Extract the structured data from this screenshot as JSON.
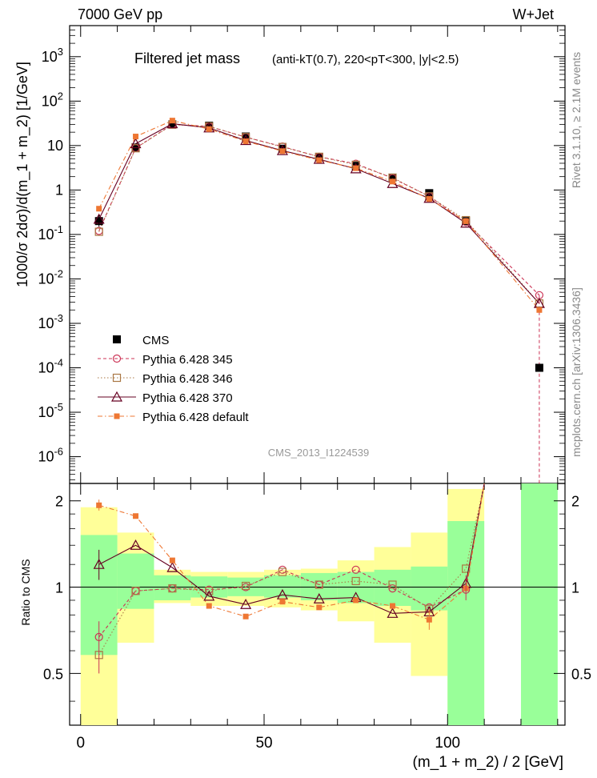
{
  "header": {
    "left": "7000 GeV pp",
    "right": "W+Jet"
  },
  "side_labels": {
    "rivet": "Rivet 3.1.10, ≥ 2.1M events",
    "mcplots": "mcplots.cern.ch [arXiv:1306.3436]"
  },
  "chart_data": [
    {
      "type": "line",
      "panel": "main",
      "title": "Filtered jet mass",
      "subtitle": "(anti-kT(0.7), 220<pT<300, |y|<2.5)",
      "analysis_tag": "CMS_2013_I1224539",
      "xlabel": "(m_1 + m_2) / 2 [GeV]",
      "ylabel": "1000/σ 2dσ)/d(m_1 + m_2) [1/GeV]",
      "yscale": "log",
      "xlim": [
        -3,
        132
      ],
      "ylim": [
        2.5e-07,
        5000
      ],
      "y_ticks": [
        {
          "value": 1e-06,
          "label": "10^-6"
        },
        {
          "value": 1e-05,
          "label": "10^-5"
        },
        {
          "value": 0.0001,
          "label": "10^-4"
        },
        {
          "value": 0.001,
          "label": "10^-3"
        },
        {
          "value": 0.01,
          "label": "10^-2"
        },
        {
          "value": 0.1,
          "label": "10^-1"
        },
        {
          "value": 1,
          "label": "1"
        },
        {
          "value": 10,
          "label": "10"
        },
        {
          "value": 100,
          "label": "10^2"
        },
        {
          "value": 1000,
          "label": "10^3"
        }
      ],
      "x": [
        5,
        15,
        25,
        35,
        45,
        55,
        65,
        75,
        85,
        95,
        105,
        125
      ],
      "x_bins": [
        [
          0,
          10
        ],
        [
          10,
          20
        ],
        [
          20,
          30
        ],
        [
          30,
          40
        ],
        [
          40,
          50
        ],
        [
          50,
          60
        ],
        [
          60,
          70
        ],
        [
          70,
          80
        ],
        [
          80,
          90
        ],
        [
          90,
          100
        ],
        [
          100,
          110
        ],
        [
          120,
          130
        ]
      ],
      "series": [
        {
          "name": "CMS",
          "label": "CMS",
          "color": "#000000",
          "marker": "square-filled",
          "values": [
            0.2,
            9.0,
            30.0,
            28.0,
            16.0,
            8.5,
            5.5,
            3.5,
            1.9,
            0.85,
            0.2,
            0.0001
          ]
        },
        {
          "name": "p345",
          "label": "Pythia 6.428 345",
          "color": "#cc3355",
          "marker": "circle-open",
          "values": [
            0.12,
            8.8,
            30.0,
            27.0,
            15.5,
            9.5,
            5.6,
            3.9,
            1.85,
            0.72,
            0.19,
            0.0043
          ]
        },
        {
          "name": "p346",
          "label": "Pythia 6.428 346",
          "color": "#aa7744",
          "marker": "square-open",
          "values": [
            0.115,
            8.7,
            29.5,
            27.0,
            15.5,
            9.3,
            5.6,
            3.7,
            1.9,
            0.72,
            0.21,
            0.0028
          ]
        },
        {
          "name": "p370",
          "label": "Pythia 6.428 370",
          "color": "#660022",
          "marker": "triangle-open",
          "values": [
            0.22,
            11.0,
            31.0,
            25.0,
            13.0,
            7.7,
            4.9,
            3.0,
            1.4,
            0.65,
            0.18,
            0.0028
          ]
        },
        {
          "name": "pdef",
          "label": "Pythia 6.428 default",
          "color": "#ee7733",
          "marker": "square-filled-small",
          "values": [
            0.38,
            16.0,
            36.5,
            23.5,
            12.5,
            7.5,
            4.7,
            3.1,
            1.55,
            0.63,
            0.2,
            0.002
          ]
        }
      ]
    },
    {
      "type": "line",
      "panel": "ratio",
      "ylabel": "Ratio to CMS",
      "xlim": [
        -3,
        132
      ],
      "ylim": [
        0.33,
        2.3
      ],
      "x_ticks": [
        0,
        50,
        100
      ],
      "y_ticks": [
        0.5,
        1,
        2
      ],
      "reference": 1,
      "x": [
        5,
        15,
        25,
        35,
        45,
        55,
        65,
        75,
        85,
        95,
        105
      ],
      "band_green": [
        [
          0.58,
          1.52
        ],
        [
          0.84,
          1.31
        ],
        [
          0.9,
          1.1
        ],
        [
          0.92,
          1.09
        ],
        [
          0.93,
          1.08
        ],
        [
          0.92,
          1.1
        ],
        [
          0.9,
          1.12
        ],
        [
          0.88,
          1.13
        ],
        [
          0.86,
          1.15
        ],
        [
          0.83,
          1.18
        ],
        [
          0.33,
          1.7
        ]
      ],
      "band_yellow": [
        [
          0.33,
          1.9
        ],
        [
          0.64,
          1.55
        ],
        [
          0.88,
          1.15
        ],
        [
          0.86,
          1.13
        ],
        [
          0.86,
          1.13
        ],
        [
          0.85,
          1.15
        ],
        [
          0.83,
          1.16
        ],
        [
          0.76,
          1.24
        ],
        [
          0.64,
          1.38
        ],
        [
          0.49,
          1.55
        ],
        [
          0.33,
          2.2
        ]
      ],
      "green_block": {
        "from": 120,
        "to": 130,
        "low": 0.33,
        "high": 2.3
      },
      "series": [
        {
          "name": "p345",
          "values": [
            0.67,
            0.97,
            0.99,
            0.98,
            1.0,
            1.15,
            1.02,
            1.15,
            0.99,
            0.85,
            0.98
          ],
          "continues_to": [
            110,
            2.3
          ]
        },
        {
          "name": "p346",
          "values": [
            0.58,
            0.97,
            0.99,
            0.97,
            1.01,
            1.13,
            1.02,
            1.05,
            1.02,
            0.84,
            1.16
          ],
          "continues_to": [
            110,
            2.3
          ]
        },
        {
          "name": "p370",
          "values": [
            1.2,
            1.4,
            1.17,
            0.93,
            0.87,
            0.94,
            0.91,
            0.92,
            0.81,
            0.82,
            1.03
          ],
          "continues_to": [
            110,
            2.3
          ]
        },
        {
          "name": "pdef",
          "values": [
            1.93,
            1.77,
            1.24,
            0.86,
            0.79,
            0.89,
            0.85,
            0.9,
            0.86,
            0.77,
            0.99
          ],
          "continues_to": [
            110,
            2.3
          ]
        }
      ]
    }
  ]
}
